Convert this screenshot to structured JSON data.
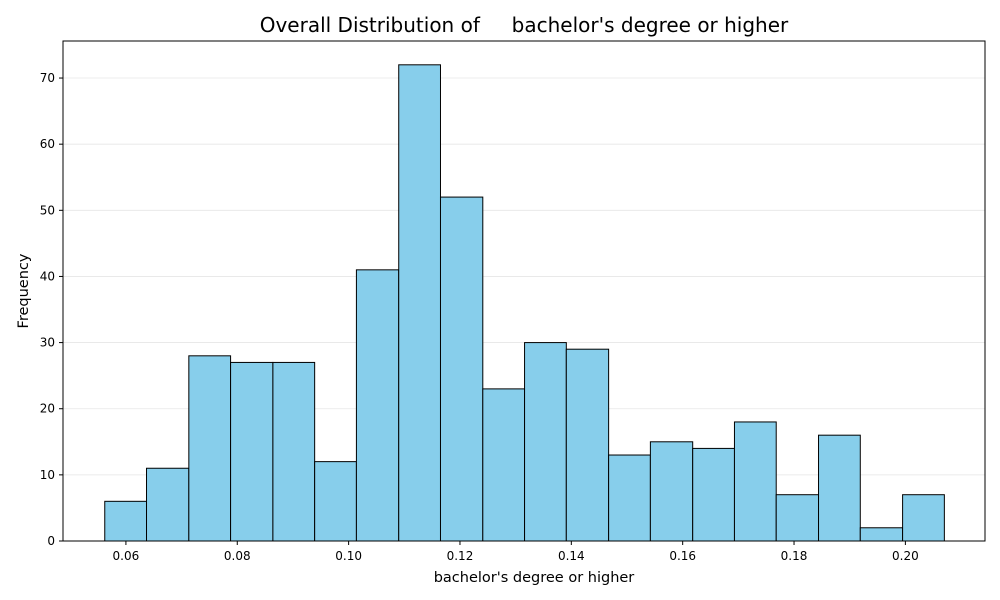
{
  "chart_data": {
    "type": "bar",
    "title": "Overall Distribution of     bachelor's degree or higher",
    "xlabel": "bachelor's degree or higher",
    "ylabel": "Frequency",
    "xlim": [
      0.0487,
      0.2143
    ],
    "ylim": [
      0,
      75.6
    ],
    "xticks": [
      0.06,
      0.08,
      0.1,
      0.12,
      0.14,
      0.16,
      0.18,
      0.2
    ],
    "xtick_labels": [
      "0.06",
      "0.08",
      "0.10",
      "0.12",
      "0.14",
      "0.16",
      "0.18",
      "0.20"
    ],
    "yticks": [
      0,
      10,
      20,
      30,
      40,
      50,
      60,
      70
    ],
    "ytick_labels": [
      "0",
      "10",
      "20",
      "30",
      "40",
      "50",
      "60",
      "70"
    ],
    "grid": "y",
    "bar_color": "#87CEEB",
    "edge_color": "#000000",
    "bins": [
      {
        "start": 0.0562,
        "end": 0.0637,
        "count": 6
      },
      {
        "start": 0.0637,
        "end": 0.0713,
        "count": 11
      },
      {
        "start": 0.0713,
        "end": 0.0788,
        "count": 28
      },
      {
        "start": 0.0788,
        "end": 0.0864,
        "count": 27
      },
      {
        "start": 0.0864,
        "end": 0.0939,
        "count": 27
      },
      {
        "start": 0.0939,
        "end": 0.1014,
        "count": 12
      },
      {
        "start": 0.1014,
        "end": 0.109,
        "count": 41
      },
      {
        "start": 0.109,
        "end": 0.1165,
        "count": 72
      },
      {
        "start": 0.1165,
        "end": 0.1241,
        "count": 52
      },
      {
        "start": 0.1241,
        "end": 0.1316,
        "count": 23
      },
      {
        "start": 0.1316,
        "end": 0.1391,
        "count": 30
      },
      {
        "start": 0.1391,
        "end": 0.1467,
        "count": 29
      },
      {
        "start": 0.1467,
        "end": 0.1542,
        "count": 13
      },
      {
        "start": 0.1542,
        "end": 0.1618,
        "count": 15
      },
      {
        "start": 0.1618,
        "end": 0.1693,
        "count": 14
      },
      {
        "start": 0.1693,
        "end": 0.1768,
        "count": 18
      },
      {
        "start": 0.1768,
        "end": 0.1844,
        "count": 7
      },
      {
        "start": 0.1844,
        "end": 0.1919,
        "count": 16
      },
      {
        "start": 0.1919,
        "end": 0.1995,
        "count": 2
      },
      {
        "start": 0.1995,
        "end": 0.207,
        "count": 7
      }
    ]
  }
}
